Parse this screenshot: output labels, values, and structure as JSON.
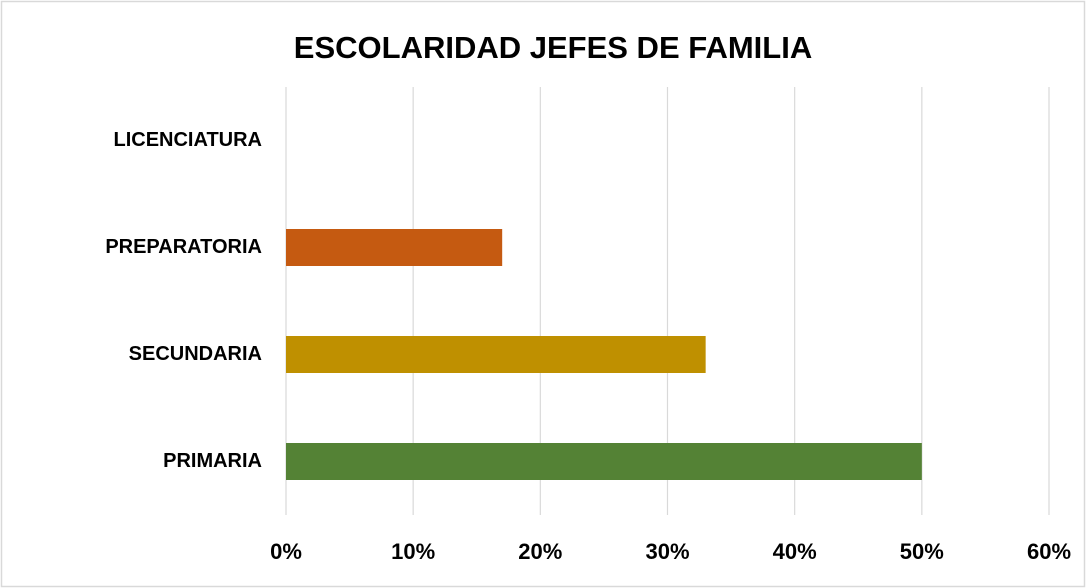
{
  "chart_data": {
    "type": "hbar",
    "title": "ESCOLARIDAD JEFES DE FAMILIA",
    "categories": [
      "LICENCIATURA",
      "PREPARATORIA",
      "SECUNDARIA",
      "PRIMARIA"
    ],
    "values": [
      0,
      17,
      33,
      50
    ],
    "colors": [
      "#4472c4",
      "#c55a11",
      "#bf9000",
      "#548235"
    ],
    "xlim": [
      0,
      60
    ],
    "xticks": [
      {
        "value": 0,
        "label": "0%"
      },
      {
        "value": 10,
        "label": "10%"
      },
      {
        "value": 20,
        "label": "20%"
      },
      {
        "value": 30,
        "label": "30%"
      },
      {
        "value": 40,
        "label": "40%"
      },
      {
        "value": 50,
        "label": "50%"
      },
      {
        "value": 60,
        "label": "60%"
      }
    ],
    "grid": true
  }
}
